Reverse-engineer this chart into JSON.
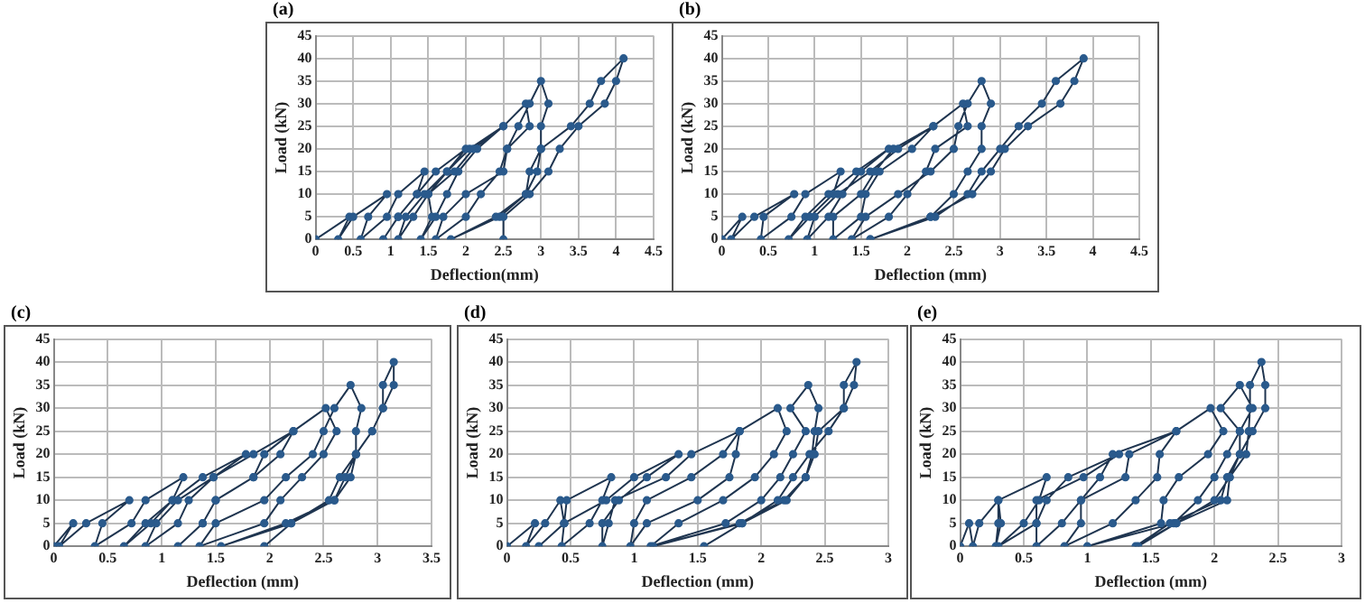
{
  "chart_data": [
    {
      "type": "line",
      "title": "(a)",
      "xlabel": "Deflection(mm)",
      "ylabel": "Load (kN)",
      "xlim": [
        0,
        4.5
      ],
      "xticks": [
        0,
        0.5,
        1,
        1.5,
        2,
        2.5,
        3,
        3.5,
        4,
        4.5
      ],
      "ylim": [
        0,
        45
      ],
      "yticks": [
        0,
        5,
        10,
        15,
        20,
        25,
        30,
        35,
        40,
        45
      ],
      "grid": true,
      "marker": "circle",
      "series": [
        {
          "color": "#2a5a8c",
          "x": [
            0,
            0.45,
            0.3,
            0.5,
            0.95,
            0.7,
            0.6,
            0.95,
            1.1,
            1.45,
            1.35,
            1.1,
            0.9,
            1.1,
            1.35,
            1.6,
            2.0,
            1.75,
            1.5,
            1.3,
            1.1,
            1.2,
            1.45,
            1.75,
            2.05,
            2.5,
            2.15,
            1.9,
            1.75,
            1.6,
            1.4,
            1.55,
            1.5,
            1.85,
            2.1,
            2.5,
            2.8,
            2.85,
            2.55,
            2.45,
            2.2,
            2.0,
            1.6,
            1.7,
            2.0,
            2.5,
            2.55,
            2.7,
            2.85,
            3.0,
            3.1,
            3.0,
            3.0,
            2.95,
            2.8,
            2.4,
            1.8,
            2.45,
            2.8,
            2.85,
            3.0,
            3.4,
            3.65,
            3.8,
            4.1,
            4.0,
            3.85,
            3.5,
            3.25,
            3.1,
            2.85,
            2.5,
            2.5
          ],
          "values": [
            0,
            5,
            0,
            5,
            10,
            5,
            0,
            5,
            10,
            15,
            10,
            5,
            0,
            5,
            10,
            15,
            20,
            15,
            10,
            5,
            0,
            5,
            10,
            15,
            20,
            25,
            20,
            15,
            10,
            5,
            0,
            5,
            10,
            15,
            20,
            25,
            30,
            25,
            20,
            15,
            10,
            5,
            0,
            5,
            10,
            15,
            20,
            25,
            30,
            35,
            30,
            25,
            20,
            15,
            10,
            5,
            0,
            5,
            10,
            15,
            20,
            25,
            30,
            35,
            40,
            35,
            30,
            25,
            20,
            15,
            10,
            5,
            0
          ]
        }
      ]
    },
    {
      "type": "line",
      "title": "(b)",
      "xlabel": "Deflection (mm)",
      "ylabel": "Load (kN)",
      "xlim": [
        0,
        4.5
      ],
      "xticks": [
        0,
        0.5,
        1,
        1.5,
        2,
        2.5,
        3,
        3.5,
        4,
        4.5
      ],
      "ylim": [
        0,
        45
      ],
      "yticks": [
        0,
        5,
        10,
        15,
        20,
        25,
        30,
        35,
        40,
        45
      ],
      "grid": true,
      "marker": "circle",
      "series": [
        {
          "color": "#2a5a8c",
          "x": [
            0,
            0.22,
            0.1,
            0.35,
            0.78,
            0.45,
            0.42,
            0.75,
            0.9,
            1.28,
            1.2,
            0.95,
            0.72,
            0.9,
            1.15,
            1.45,
            1.8,
            1.5,
            1.3,
            1.15,
            0.92,
            1.0,
            1.25,
            1.6,
            1.9,
            2.28,
            2.05,
            1.7,
            1.55,
            1.5,
            1.2,
            1.2,
            1.5,
            1.65,
            1.85,
            2.28,
            2.6,
            2.65,
            2.3,
            2.2,
            2.0,
            1.8,
            1.4,
            1.55,
            1.9,
            2.25,
            2.5,
            2.55,
            2.65,
            2.8,
            2.9,
            2.8,
            2.8,
            2.65,
            2.5,
            2.25,
            1.6,
            2.3,
            2.65,
            2.8,
            3.0,
            3.2,
            3.45,
            3.6,
            3.9,
            3.8,
            3.65,
            3.3,
            3.05,
            2.9,
            2.7,
            2.25,
            1.6
          ],
          "values": [
            0,
            5,
            0,
            5,
            10,
            5,
            0,
            5,
            10,
            15,
            10,
            5,
            0,
            5,
            10,
            15,
            20,
            15,
            10,
            5,
            0,
            5,
            10,
            15,
            20,
            25,
            20,
            15,
            10,
            5,
            0,
            5,
            10,
            15,
            20,
            25,
            30,
            25,
            20,
            15,
            10,
            5,
            0,
            5,
            10,
            15,
            20,
            25,
            30,
            35,
            30,
            25,
            20,
            15,
            10,
            5,
            0,
            5,
            10,
            15,
            20,
            25,
            30,
            35,
            40,
            35,
            30,
            25,
            20,
            15,
            10,
            5,
            0
          ]
        }
      ]
    },
    {
      "type": "line",
      "title": "(c)",
      "xlabel": "Deflection (mm)",
      "ylabel": "Load (kN)",
      "xlim": [
        0,
        3.5
      ],
      "xticks": [
        0,
        0.5,
        1,
        1.5,
        2,
        2.5,
        3,
        3.5
      ],
      "ylim": [
        0,
        45
      ],
      "yticks": [
        0,
        5,
        10,
        15,
        20,
        25,
        30,
        35,
        40,
        45
      ],
      "grid": true,
      "marker": "circle",
      "series": [
        {
          "color": "#2a5a8c",
          "x": [
            0,
            0.18,
            0.05,
            0.3,
            0.7,
            0.45,
            0.38,
            0.72,
            0.85,
            1.2,
            1.1,
            0.9,
            0.65,
            0.85,
            1.1,
            1.38,
            1.78,
            1.48,
            1.25,
            1.15,
            0.85,
            0.95,
            1.15,
            1.48,
            1.85,
            2.22,
            1.95,
            1.85,
            1.5,
            1.38,
            1.15,
            1.38,
            1.5,
            1.85,
            2.1,
            2.22,
            2.52,
            2.62,
            2.5,
            2.3,
            2.1,
            1.95,
            1.35,
            1.5,
            1.95,
            2.15,
            2.4,
            2.5,
            2.6,
            2.75,
            2.85,
            2.8,
            2.8,
            2.65,
            2.55,
            2.2,
            1.55,
            2.15,
            2.6,
            2.75,
            2.8,
            2.95,
            3.05,
            3.05,
            3.15,
            3.15,
            3.05,
            2.95,
            2.8,
            2.7,
            2.6,
            2.2,
            1.95
          ],
          "values": [
            0,
            5,
            0,
            5,
            10,
            5,
            0,
            5,
            10,
            15,
            10,
            5,
            0,
            5,
            10,
            15,
            20,
            15,
            10,
            5,
            0,
            5,
            10,
            15,
            20,
            25,
            20,
            15,
            10,
            5,
            0,
            5,
            10,
            15,
            20,
            25,
            30,
            25,
            20,
            15,
            10,
            5,
            0,
            5,
            10,
            15,
            20,
            25,
            30,
            35,
            30,
            25,
            20,
            15,
            10,
            5,
            0,
            5,
            10,
            15,
            20,
            25,
            30,
            35,
            40,
            35,
            30,
            25,
            20,
            15,
            10,
            5,
            0
          ]
        }
      ]
    },
    {
      "type": "line",
      "title": "(d)",
      "xlabel": "Deflection (mm)",
      "ylabel": "Load (kN)",
      "xlim": [
        0,
        3
      ],
      "xticks": [
        0,
        0.5,
        1,
        1.5,
        2,
        2.5,
        3
      ],
      "ylim": [
        0,
        45
      ],
      "yticks": [
        0,
        5,
        10,
        15,
        20,
        25,
        30,
        35,
        40,
        45
      ],
      "grid": true,
      "marker": "circle",
      "series": [
        {
          "color": "#2a5a8c",
          "x": [
            0,
            0.22,
            0.15,
            0.3,
            0.42,
            0.45,
            0.25,
            0.45,
            0.47,
            0.82,
            0.75,
            0.65,
            0.43,
            0.45,
            0.78,
            1.0,
            1.35,
            1.1,
            0.88,
            0.75,
            0.75,
            0.8,
            0.85,
            1.25,
            1.45,
            1.83,
            1.7,
            1.45,
            1.1,
            1.0,
            0.97,
            1.1,
            1.5,
            1.75,
            1.8,
            1.83,
            2.13,
            2.2,
            2.1,
            1.95,
            1.7,
            1.35,
            1.13,
            1.72,
            2.0,
            2.15,
            2.25,
            2.35,
            2.23,
            2.37,
            2.45,
            2.42,
            2.4,
            2.35,
            2.18,
            1.83,
            1.15,
            1.85,
            2.13,
            2.25,
            2.38,
            2.53,
            2.65,
            2.65,
            2.75,
            2.73,
            2.65,
            2.45,
            2.42,
            2.35,
            2.2,
            1.85,
            1.55
          ],
          "values": [
            0,
            5,
            0,
            5,
            10,
            5,
            0,
            5,
            10,
            15,
            10,
            5,
            0,
            5,
            10,
            15,
            20,
            15,
            10,
            5,
            0,
            5,
            10,
            15,
            20,
            25,
            20,
            15,
            10,
            5,
            0,
            5,
            10,
            15,
            20,
            25,
            30,
            25,
            20,
            15,
            10,
            5,
            0,
            5,
            10,
            15,
            20,
            25,
            30,
            35,
            30,
            25,
            20,
            15,
            10,
            5,
            0,
            5,
            10,
            15,
            20,
            25,
            30,
            35,
            40,
            35,
            30,
            25,
            20,
            15,
            10,
            5,
            0
          ]
        }
      ]
    },
    {
      "type": "line",
      "title": "(e)",
      "xlabel": "Deflection (mm)",
      "ylabel": "Load (kN)",
      "xlim": [
        0,
        3
      ],
      "xticks": [
        0,
        0.5,
        1,
        1.5,
        2,
        2.5,
        3
      ],
      "ylim": [
        0,
        45
      ],
      "yticks": [
        0,
        5,
        10,
        15,
        20,
        25,
        30,
        35,
        40,
        45
      ],
      "grid": true,
      "marker": "circle",
      "series": [
        {
          "color": "#2a5a8c",
          "x": [
            0,
            0.07,
            0.1,
            0.15,
            0.3,
            0.3,
            0.28,
            0.32,
            0.3,
            0.68,
            0.62,
            0.5,
            0.3,
            0.6,
            0.68,
            0.85,
            1.25,
            0.97,
            0.6,
            0.6,
            0.6,
            0.8,
            0.95,
            1.1,
            1.2,
            1.7,
            1.33,
            1.3,
            0.95,
            0.95,
            0.82,
            1.2,
            1.38,
            1.55,
            1.57,
            1.7,
            1.97,
            2.07,
            1.95,
            1.72,
            1.6,
            1.58,
            1.0,
            1.68,
            1.87,
            2.0,
            2.1,
            2.2,
            2.05,
            2.2,
            2.3,
            2.2,
            2.2,
            2.1,
            2.05,
            1.65,
            1.38,
            1.7,
            2.0,
            2.12,
            2.25,
            2.27,
            2.28,
            2.28,
            2.37,
            2.4,
            2.4,
            2.3,
            2.2,
            2.12,
            2.1,
            1.7,
            1.4
          ],
          "values": [
            0,
            5,
            0,
            5,
            10,
            5,
            0,
            5,
            10,
            15,
            10,
            5,
            0,
            5,
            10,
            15,
            20,
            15,
            10,
            5,
            0,
            5,
            10,
            15,
            20,
            25,
            20,
            15,
            10,
            5,
            0,
            5,
            10,
            15,
            20,
            25,
            30,
            25,
            20,
            15,
            10,
            5,
            0,
            5,
            10,
            15,
            20,
            25,
            30,
            35,
            30,
            25,
            20,
            15,
            10,
            5,
            0,
            5,
            10,
            15,
            20,
            25,
            30,
            35,
            40,
            35,
            30,
            25,
            20,
            15,
            10,
            5,
            0
          ]
        }
      ]
    }
  ]
}
